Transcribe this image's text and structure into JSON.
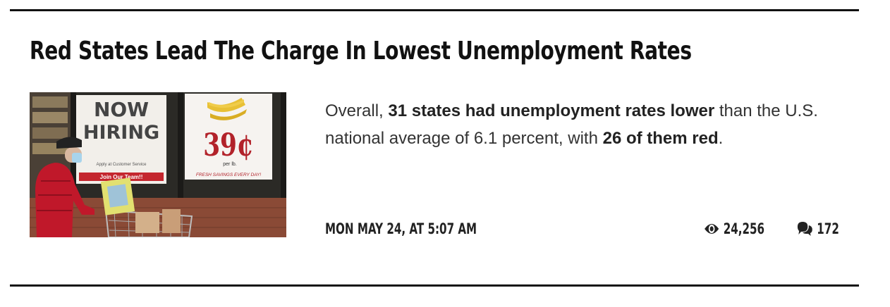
{
  "article": {
    "headline": "Red States Lead The Charge In Lowest Unemployment Rates",
    "image": {
      "sign1_line1": "NOW",
      "sign1_line2": "HIRING",
      "sign1_small": "Apply at Customer Service",
      "sign1_banner": "Join Our Team!!",
      "sign2_price": "39¢",
      "sign2_unit": "per lb.",
      "sign2_footer": "FRESH SAVINGS EVERY DAY!"
    },
    "summary": {
      "part1": "Overall, ",
      "bold1": "31 states had unemployment rates lower",
      "part2": " than the U.S. national average of 6.1 percent, with ",
      "bold2": "26 of them red",
      "part3": "."
    },
    "timestamp": "MON MAY 24, AT 5:07 AM",
    "views": "24,256",
    "comments": "172"
  },
  "icons": {
    "views": "eye-icon",
    "comments": "comment-bubbles-icon"
  },
  "colors": {
    "rule": "#111111",
    "text": "#222222",
    "hiring_sign_text": "#444444",
    "price_red": "#b2222a",
    "jacket_red": "#c0182a",
    "brick": "#8a4a36"
  }
}
